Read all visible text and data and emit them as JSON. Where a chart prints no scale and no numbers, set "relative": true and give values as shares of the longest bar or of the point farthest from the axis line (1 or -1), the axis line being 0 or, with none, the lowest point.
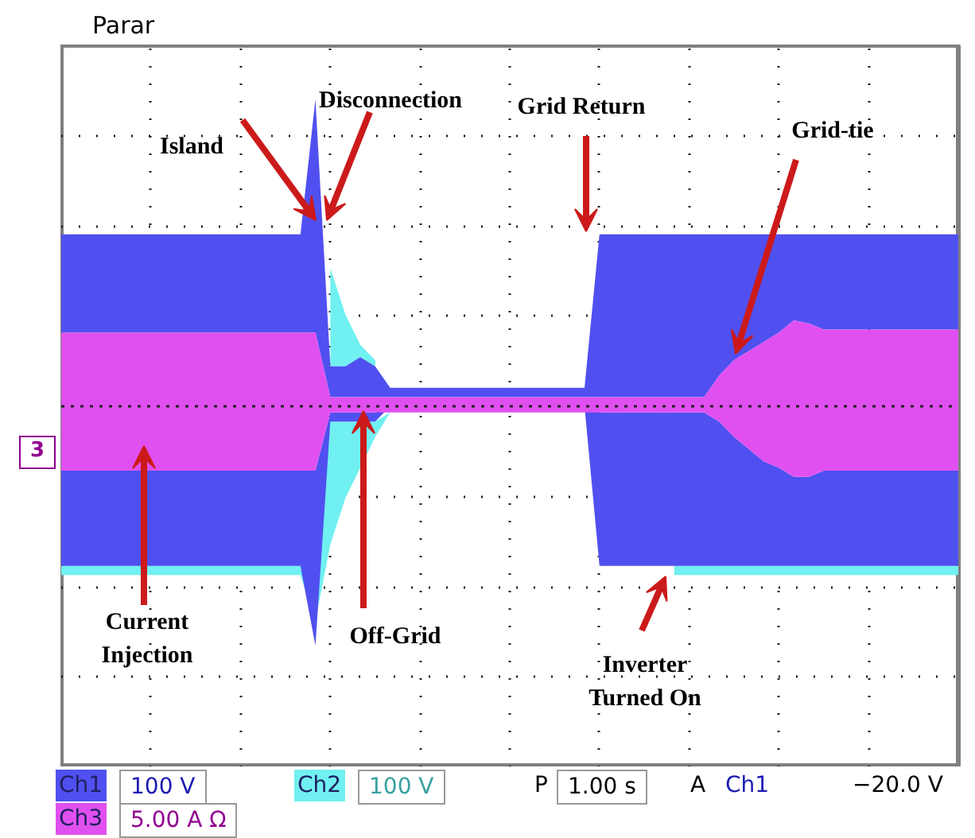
{
  "chart_data": {
    "type": "area",
    "relative": true,
    "grid": true,
    "categories": [
      null,
      null,
      null,
      null,
      null,
      null,
      null,
      null,
      null,
      null,
      null,
      null,
      null,
      null,
      null,
      null,
      null,
      null,
      null,
      null,
      null,
      null,
      null,
      null,
      null,
      null,
      null,
      null,
      null,
      null,
      null,
      null,
      null,
      null,
      null,
      null,
      null,
      null,
      null,
      null,
      null,
      null,
      null,
      null,
      null,
      null,
      null,
      null,
      null,
      null,
      null,
      null,
      null,
      null,
      null,
      null,
      null,
      null,
      null,
      null,
      null
    ],
    "series": [
      {
        "name": "Ch2",
        "color": "#70f0f0",
        "values": [
          null,
          null,
          null,
          null,
          null,
          null,
          null,
          null,
          null,
          null,
          null,
          null,
          null,
          null,
          null,
          null,
          null,
          null,
          0.45,
          0.3,
          0.2,
          0.15,
          null,
          null,
          null,
          null,
          null,
          null,
          null,
          null,
          null,
          null,
          null,
          null,
          null,
          null,
          null,
          null,
          null,
          null,
          null,
          null,
          null,
          null,
          null,
          null,
          null,
          null,
          null,
          null,
          null,
          null,
          null,
          null,
          null,
          null,
          null,
          null,
          null,
          null,
          null
        ]
      },
      {
        "color": "#70f0f0",
        "values": [
          -0.55,
          -0.55,
          -0.55,
          -0.55,
          -0.55,
          -0.55,
          -0.55,
          -0.55,
          -0.55,
          -0.55,
          -0.55,
          -0.55,
          -0.55,
          -0.55,
          -0.55,
          -0.55,
          -0.55,
          -0.7,
          -0.45,
          -0.3,
          -0.2,
          -0.1,
          -0.02,
          null,
          null,
          null,
          null,
          null,
          null,
          null,
          null,
          null,
          null,
          null,
          null,
          null,
          null,
          null,
          null,
          null,
          null,
          -0.55,
          -0.55,
          -0.55,
          -0.55,
          -0.55,
          -0.55,
          -0.55,
          -0.55,
          -0.55,
          -0.55,
          -0.55,
          -0.55,
          -0.55,
          -0.55,
          -0.55,
          -0.55,
          -0.55,
          -0.55,
          -0.55,
          -0.55
        ]
      },
      {
        "name": "Ch1",
        "color": "#5050f0",
        "values": [
          0.56,
          0.56,
          0.56,
          0.56,
          0.56,
          0.56,
          0.56,
          0.56,
          0.56,
          0.56,
          0.56,
          0.56,
          0.56,
          0.56,
          0.56,
          0.56,
          0.56,
          1.0,
          0.13,
          0.13,
          0.16,
          0.13,
          0.06,
          0.06,
          0.06,
          0.06,
          0.06,
          0.06,
          0.06,
          0.06,
          0.06,
          0.06,
          0.06,
          0.06,
          0.06,
          0.06,
          0.56,
          0.56,
          0.56,
          0.56,
          0.56,
          0.56,
          0.56,
          0.56,
          0.56,
          0.56,
          0.56,
          0.56,
          0.56,
          0.56,
          0.56,
          0.56,
          0.56,
          0.56,
          0.56,
          0.56,
          0.56,
          0.56,
          0.56,
          0.56,
          0.56
        ]
      },
      {
        "color": "#5050f0",
        "values": [
          -0.52,
          -0.52,
          -0.52,
          -0.52,
          -0.52,
          -0.52,
          -0.52,
          -0.52,
          -0.52,
          -0.52,
          -0.52,
          -0.52,
          -0.52,
          -0.52,
          -0.52,
          -0.52,
          -0.52,
          -0.78,
          -0.05,
          -0.05,
          -0.05,
          -0.05,
          0.0,
          0.0,
          0.0,
          0.0,
          0.0,
          0.0,
          0.0,
          0.0,
          0.0,
          0.0,
          0.0,
          0.0,
          0.0,
          0.0,
          -0.52,
          -0.52,
          -0.52,
          -0.52,
          -0.52,
          -0.52,
          -0.52,
          -0.52,
          -0.52,
          -0.52,
          -0.52,
          -0.52,
          -0.52,
          -0.52,
          -0.52,
          -0.52,
          -0.52,
          -0.52,
          -0.52,
          -0.52,
          -0.52,
          -0.52,
          -0.52,
          -0.52,
          -0.52
        ]
      },
      {
        "name": "Ch3",
        "color": "#e050f0",
        "values": [
          0.24,
          0.24,
          0.24,
          0.24,
          0.24,
          0.24,
          0.24,
          0.24,
          0.24,
          0.24,
          0.24,
          0.24,
          0.24,
          0.24,
          0.24,
          0.24,
          0.24,
          0.24,
          0.03,
          0.03,
          0.03,
          0.03,
          0.03,
          0.03,
          0.03,
          0.03,
          0.03,
          0.03,
          0.03,
          0.03,
          0.03,
          0.03,
          0.03,
          0.03,
          0.03,
          0.03,
          0.03,
          0.03,
          0.03,
          0.03,
          0.03,
          0.03,
          0.03,
          0.03,
          0.1,
          0.15,
          0.18,
          0.21,
          0.24,
          0.28,
          0.27,
          0.25,
          0.25,
          0.25,
          0.25,
          0.25,
          0.25,
          0.25,
          0.25,
          0.25,
          0.25
        ]
      },
      {
        "color": "#e050f0",
        "values": [
          -0.21,
          -0.21,
          -0.21,
          -0.21,
          -0.21,
          -0.21,
          -0.21,
          -0.21,
          -0.21,
          -0.21,
          -0.21,
          -0.21,
          -0.21,
          -0.21,
          -0.21,
          -0.21,
          -0.21,
          -0.21,
          -0.02,
          -0.02,
          -0.02,
          -0.02,
          -0.02,
          -0.02,
          -0.02,
          -0.02,
          -0.02,
          -0.02,
          -0.02,
          -0.02,
          -0.02,
          -0.02,
          -0.02,
          -0.02,
          -0.02,
          -0.02,
          -0.02,
          -0.02,
          -0.02,
          -0.02,
          -0.02,
          -0.02,
          -0.02,
          -0.02,
          -0.05,
          -0.1,
          -0.14,
          -0.18,
          -0.2,
          -0.23,
          -0.23,
          -0.21,
          -0.21,
          -0.21,
          -0.21,
          -0.21,
          -0.21,
          -0.21,
          -0.21,
          -0.21,
          -0.21
        ]
      }
    ],
    "annotations": [
      "Island",
      "Disconnection",
      "Grid Return",
      "Grid-tie",
      "Current\nInjection",
      "Off-Grid",
      "Inverter\nTurned On",
      "Parar",
      "3",
      "100 V",
      "100 V",
      "P",
      "1.00 s",
      "A",
      "Ch1",
      "−20.0 V",
      "5.00 A Ω"
    ]
  }
}
